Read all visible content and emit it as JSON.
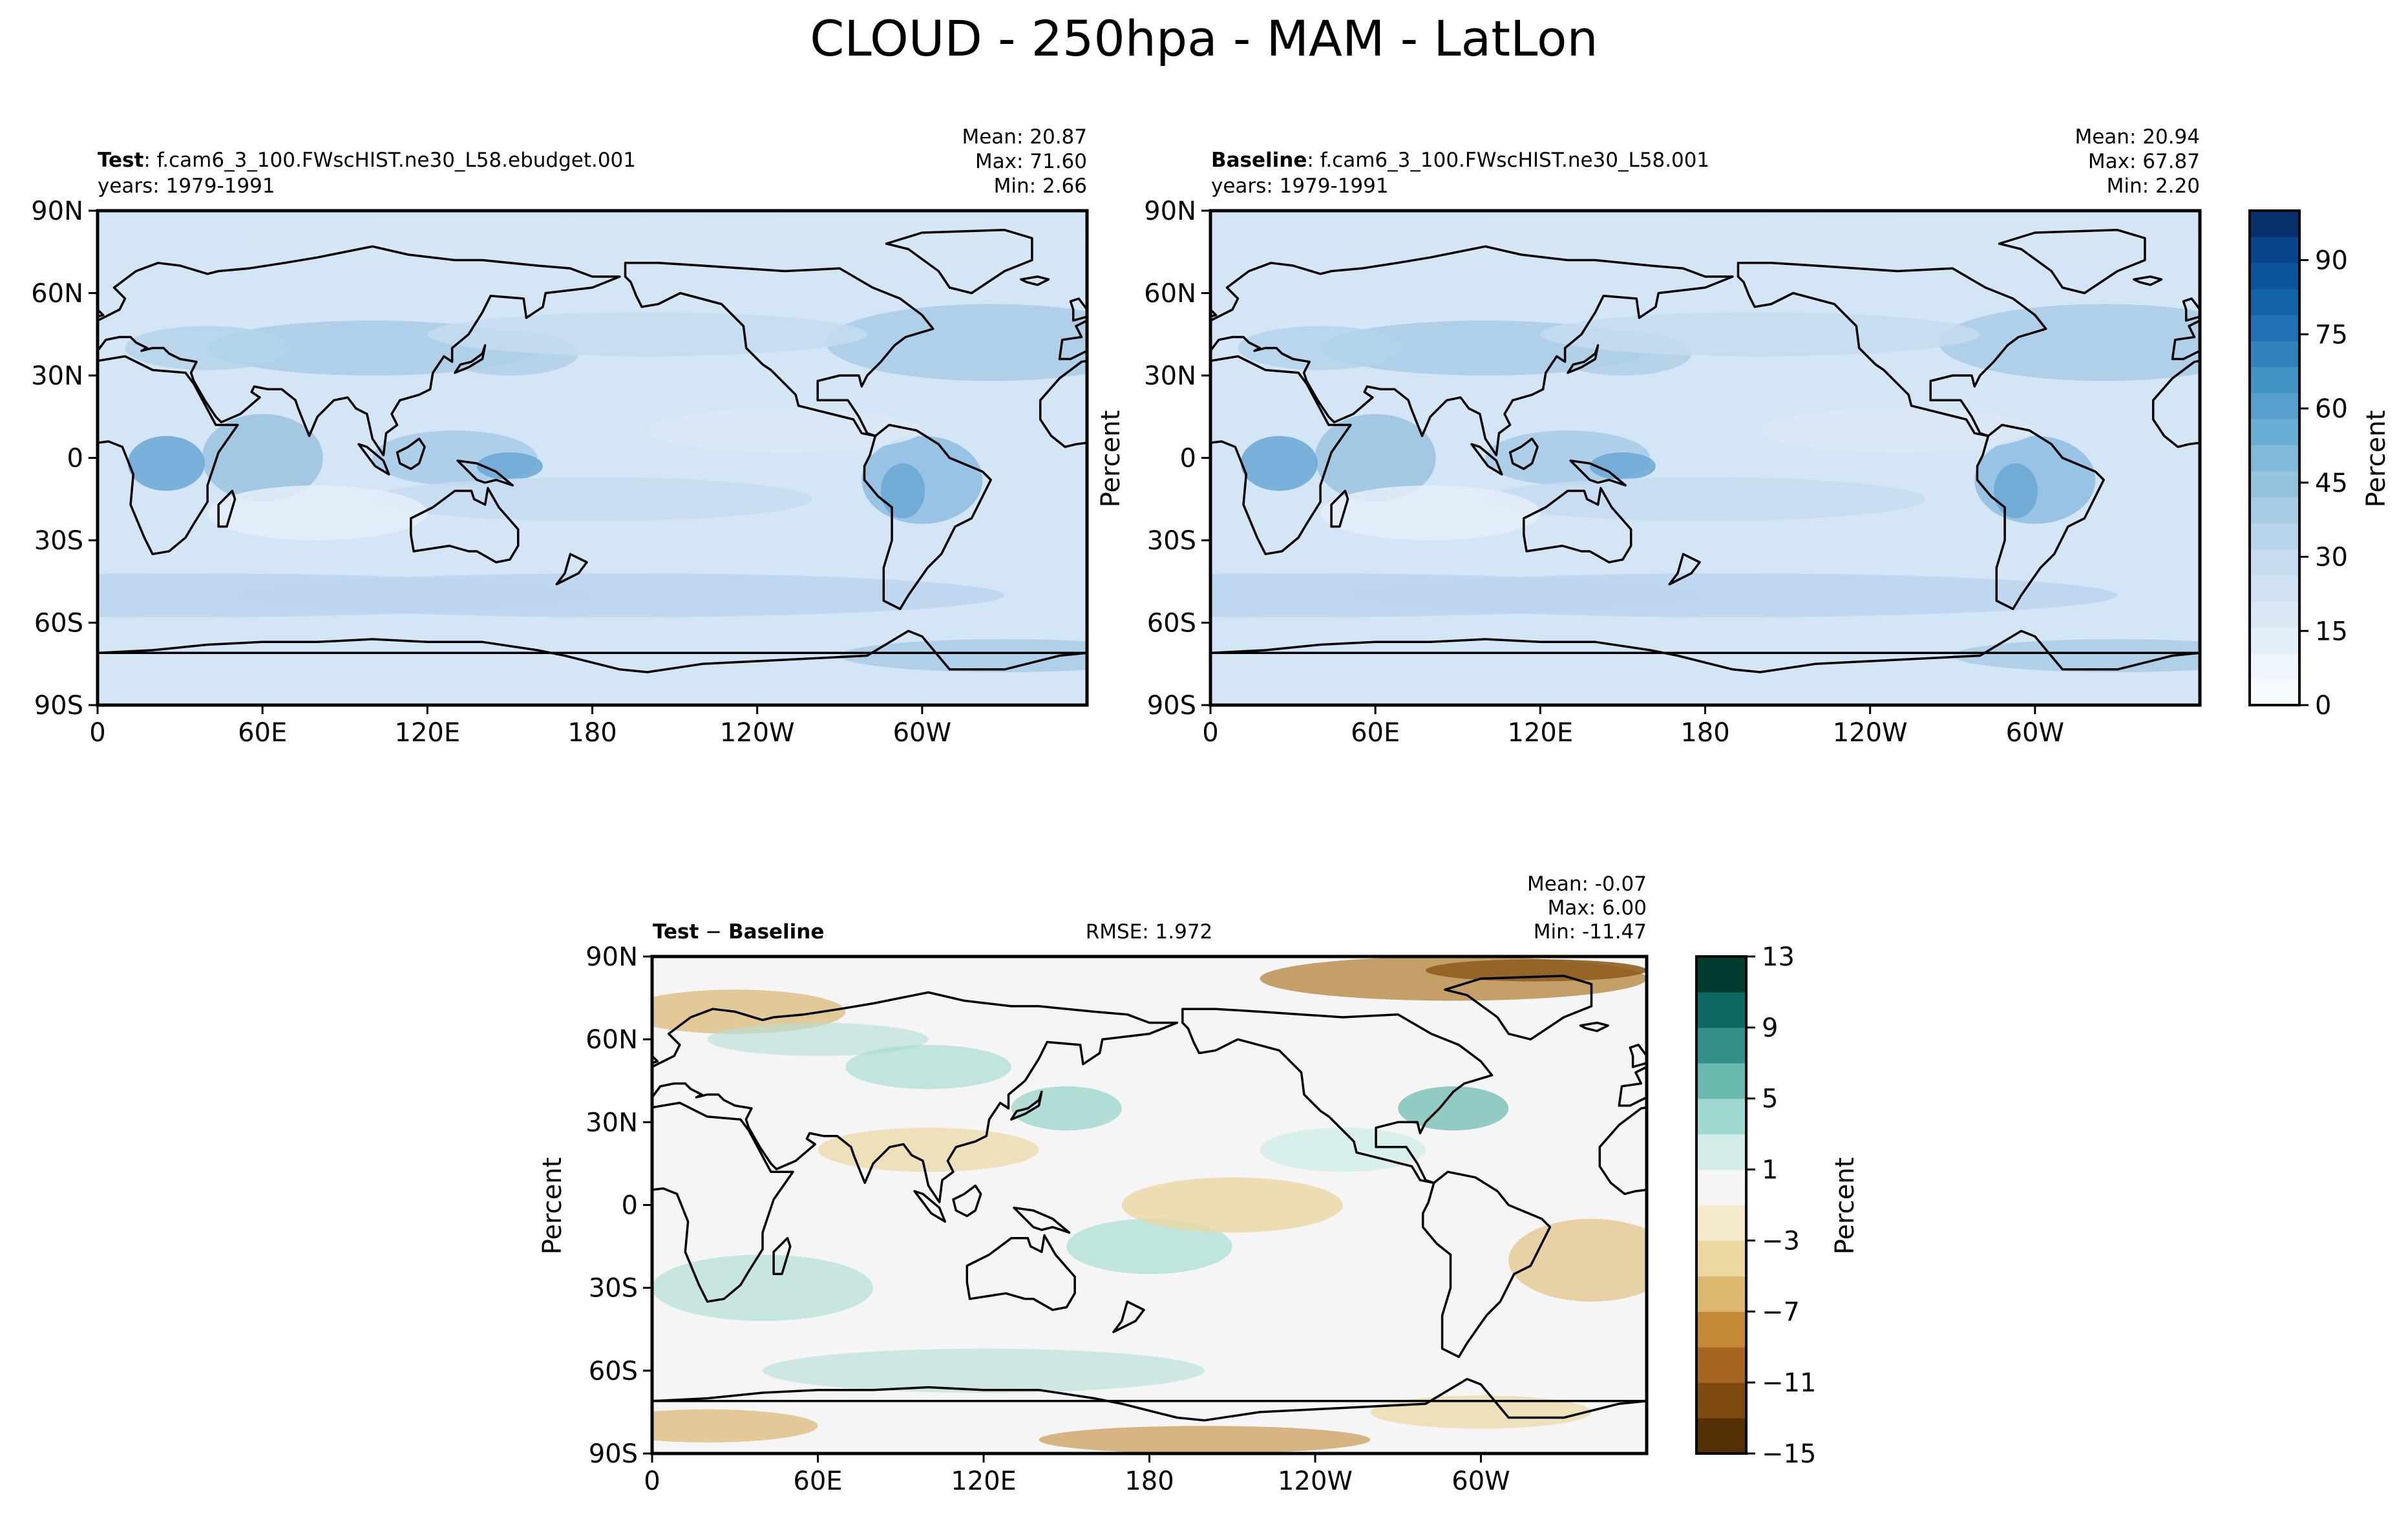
{
  "title": "CLOUD - 250hpa - MAM - LatLon",
  "x_ticks": [
    "0",
    "60E",
    "120E",
    "180",
    "120W",
    "60W"
  ],
  "y_ticks": [
    "90N",
    "60N",
    "30N",
    "0",
    "30S",
    "60S",
    "90S"
  ],
  "panels": {
    "test": {
      "label_bold": "Test",
      "case": ": f.cam6_3_100.FWscHIST.ne30_L58.ebudget.001",
      "years": "years: 1979-1991",
      "mean": "Mean: 20.87",
      "max": "Max: 71.60",
      "min": "Min:  2.66"
    },
    "baseline": {
      "label_bold": "Baseline",
      "case": ": f.cam6_3_100.FWscHIST.ne30_L58.001",
      "years": "years: 1979-1991",
      "mean": "Mean: 20.94",
      "max": "Max: 67.87",
      "min": "Min:  2.20",
      "ylabel": "Percent"
    },
    "diff": {
      "label_a": "Test",
      "label_op": " − ",
      "label_b": "Baseline",
      "rmse": "RMSE: 1.972",
      "mean": "Mean: -0.07",
      "max": "Max:  6.00",
      "min": "Min: -11.47",
      "ylabel": "Percent"
    }
  },
  "colorbars": {
    "cloud": {
      "label": "Percent",
      "ticks": [
        "0",
        "15",
        "30",
        "45",
        "60",
        "75",
        "90"
      ],
      "colors": [
        "#f7fbff",
        "#eef5fc",
        "#e3eef9",
        "#dae8f6",
        "#d0e1f2",
        "#c6dbef",
        "#b7d4ea",
        "#a6cde4",
        "#94c4df",
        "#80b9da",
        "#6aaed6",
        "#57a0ce",
        "#4292c6",
        "#3282be",
        "#2070b4",
        "#1562a9",
        "#0b539a",
        "#08458a",
        "#08306b"
      ]
    },
    "diff": {
      "label": "Percent",
      "ticks": [
        "13",
        "9",
        "5",
        "1",
        "−3",
        "−7",
        "−11",
        "−15"
      ],
      "colors": [
        "#543005",
        "#7e4a0f",
        "#a46621",
        "#c48935",
        "#dbb770",
        "#ead7a2",
        "#f5e9cb",
        "#f5f5f5",
        "#d2ede9",
        "#9fd8ce",
        "#68b9ae",
        "#339089",
        "#0c6a62",
        "#003c30"
      ]
    }
  }
}
